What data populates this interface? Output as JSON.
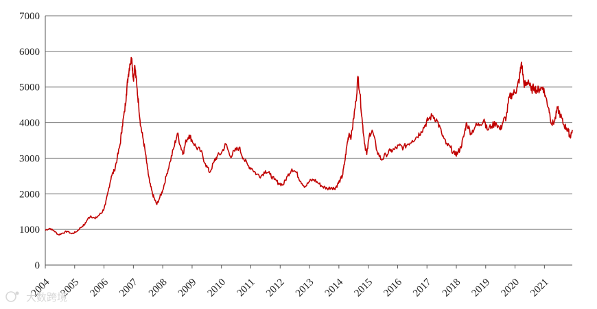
{
  "watermark": {
    "text": "大数跨境",
    "icon": "logo-icon"
  },
  "colors": {
    "line": "#c00000",
    "grid": "#8c8c8c",
    "text": "#222222"
  },
  "chart_data": {
    "type": "line",
    "title": "",
    "xlabel": "",
    "ylabel": "",
    "ylim": [
      0,
      7000
    ],
    "yticks": [
      0,
      1000,
      2000,
      3000,
      4000,
      5000,
      6000,
      7000
    ],
    "ytick_labels": [
      "0",
      "1000",
      "2000",
      "3000",
      "4000",
      "5000",
      "6000",
      "7000"
    ],
    "xlim": [
      2004.0,
      2021.95
    ],
    "xtick_labels": [
      "2004",
      "2005",
      "2006",
      "2007",
      "2008",
      "2009",
      "2010",
      "2011",
      "2012",
      "2013",
      "2014",
      "2015",
      "2016",
      "2017",
      "2018",
      "2019",
      "2020",
      "2021"
    ],
    "grid": "horizontal",
    "legend": "none",
    "series": [
      {
        "x": [
          2004.0,
          2004.15,
          2004.3,
          2004.45,
          2004.6,
          2004.75,
          2004.9,
          2005.05,
          2005.2,
          2005.35,
          2005.45,
          2005.55,
          2005.7,
          2005.85,
          2005.95,
          2006.05,
          2006.15,
          2006.25,
          2006.35,
          2006.45,
          2006.55,
          2006.62,
          2006.7,
          2006.76,
          2006.82,
          2006.88,
          2006.95,
          2007.0,
          2007.05,
          2007.12,
          2007.18,
          2007.25,
          2007.32,
          2007.4,
          2007.48,
          2007.56,
          2007.65,
          2007.72,
          2007.8,
          2007.9,
          2008.0,
          2008.12,
          2008.25,
          2008.38,
          2008.5,
          2008.62,
          2008.7,
          2008.8,
          2008.9,
          2009.0,
          2009.15,
          2009.3,
          2009.45,
          2009.6,
          2009.75,
          2009.85,
          2010.0,
          2010.15,
          2010.3,
          2010.45,
          2010.6,
          2010.75,
          2010.9,
          2011.05,
          2011.2,
          2011.35,
          2011.5,
          2011.65,
          2011.8,
          2011.95,
          2012.1,
          2012.25,
          2012.4,
          2012.55,
          2012.7,
          2012.85,
          2013.0,
          2013.15,
          2013.3,
          2013.45,
          2013.6,
          2013.75,
          2013.85,
          2013.95,
          2014.05,
          2014.12,
          2014.2,
          2014.28,
          2014.35,
          2014.42,
          2014.5,
          2014.58,
          2014.65,
          2014.72,
          2014.8,
          2014.88,
          2014.95,
          2015.05,
          2015.15,
          2015.3,
          2015.45,
          2015.6,
          2015.75,
          2015.9,
          2016.05,
          2016.2,
          2016.35,
          2016.5,
          2016.65,
          2016.8,
          2016.95,
          2017.05,
          2017.2,
          2017.35,
          2017.5,
          2017.65,
          2017.8,
          2017.95,
          2018.05,
          2018.15,
          2018.25,
          2018.35,
          2018.5,
          2018.65,
          2018.8,
          2018.95,
          2019.05,
          2019.2,
          2019.35,
          2019.5,
          2019.6,
          2019.7,
          2019.8,
          2019.9,
          2020.0,
          2020.08,
          2020.15,
          2020.22,
          2020.3,
          2020.38,
          2020.45,
          2020.55,
          2020.65,
          2020.75,
          2020.85,
          2020.95,
          2021.05,
          2021.15,
          2021.25,
          2021.35,
          2021.45,
          2021.55,
          2021.65,
          2021.75,
          2021.82,
          2021.88,
          2021.95
        ],
        "y": [
          980,
          1030,
          960,
          850,
          900,
          950,
          880,
          930,
          1050,
          1150,
          1300,
          1380,
          1300,
          1420,
          1500,
          1700,
          2100,
          2500,
          2650,
          3000,
          3400,
          3900,
          4300,
          4800,
          5300,
          5650,
          5800,
          5200,
          5600,
          5000,
          4500,
          3900,
          3600,
          3200,
          2700,
          2300,
          2000,
          1850,
          1700,
          1900,
          2100,
          2500,
          2900,
          3300,
          3700,
          3300,
          3150,
          3500,
          3650,
          3500,
          3300,
          3200,
          2850,
          2600,
          2900,
          3050,
          3150,
          3400,
          3050,
          3200,
          3300,
          3000,
          2800,
          2700,
          2550,
          2500,
          2650,
          2550,
          2400,
          2300,
          2250,
          2500,
          2700,
          2600,
          2350,
          2200,
          2350,
          2400,
          2300,
          2200,
          2150,
          2180,
          2150,
          2250,
          2400,
          2500,
          2900,
          3400,
          3700,
          3600,
          4100,
          4600,
          5300,
          4800,
          4000,
          3400,
          3100,
          3700,
          3750,
          3200,
          2950,
          3100,
          3200,
          3250,
          3350,
          3300,
          3400,
          3500,
          3600,
          3750,
          3950,
          4100,
          4200,
          4050,
          3700,
          3400,
          3300,
          3100,
          3150,
          3300,
          3600,
          4000,
          3700,
          3900,
          3950,
          4100,
          3800,
          3900,
          4000,
          3800,
          4050,
          4150,
          4700,
          4800,
          4850,
          5000,
          5250,
          5700,
          5100,
          5050,
          5200,
          4900,
          5000,
          4900,
          4950,
          5000,
          4700,
          4400,
          3950,
          4050,
          4400,
          4200,
          3950,
          3850,
          3750,
          3600,
          3800
        ]
      }
    ]
  }
}
